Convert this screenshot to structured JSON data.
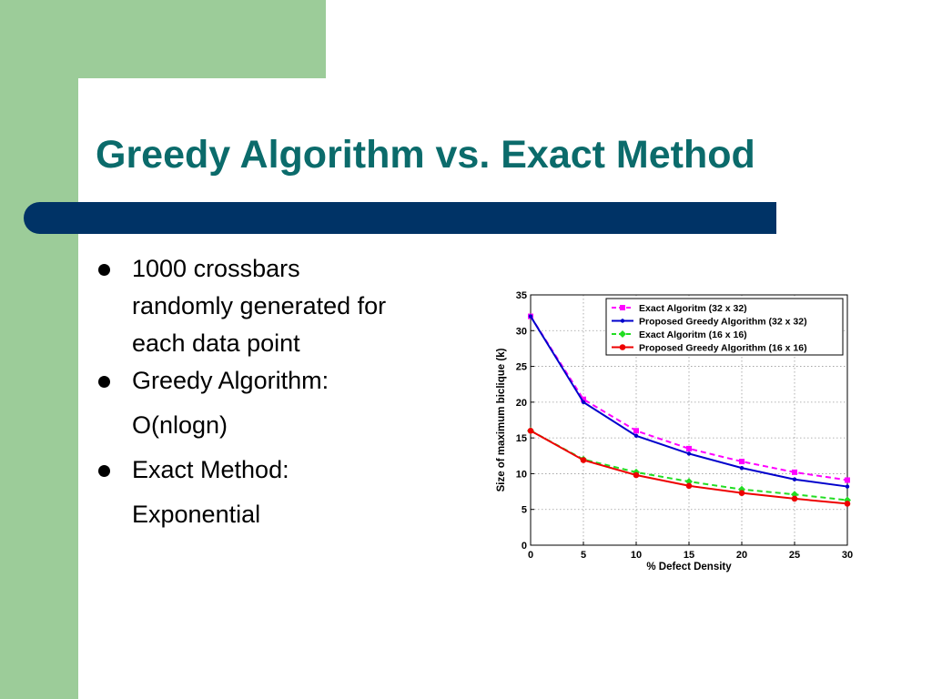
{
  "slide": {
    "title": "Greedy Algorithm vs. Exact Method",
    "bullets": [
      {
        "lines": [
          "1000 crossbars",
          "randomly generated for",
          "each data point"
        ]
      },
      {
        "lines": [
          "Greedy Algorithm:",
          "O(nlogn)"
        ]
      },
      {
        "lines": [
          "Exact Method:",
          "Exponential"
        ]
      }
    ]
  },
  "colors": {
    "green": "#9ccc99",
    "navy": "#003366",
    "title": "#0b6b6b"
  },
  "chart_data": {
    "type": "line",
    "xlabel": "% Defect Density",
    "ylabel": "Size of maximum biclique (k)",
    "xlim": [
      0,
      30
    ],
    "ylim": [
      0,
      35
    ],
    "xticks": [
      0,
      5,
      10,
      15,
      20,
      25,
      30
    ],
    "yticks": [
      0,
      5,
      10,
      15,
      20,
      25,
      30,
      35
    ],
    "grid": true,
    "legend": "top-right",
    "x": [
      0,
      5,
      10,
      15,
      20,
      25,
      30
    ],
    "series": [
      {
        "name": "Exact Algoritm (32 x 32)",
        "values": [
          32,
          20.4,
          16,
          13.5,
          11.7,
          10.2,
          9.1
        ],
        "color": "#ff00ff",
        "dash": true,
        "marker": "square"
      },
      {
        "name": "Proposed Greedy Algorithm (32 x 32)",
        "values": [
          32,
          20,
          15.3,
          12.8,
          10.8,
          9.2,
          8.2
        ],
        "color": "#0000cc",
        "dash": false,
        "marker": "dot"
      },
      {
        "name": "Exact Algoritm (16 x 16)",
        "values": [
          16,
          12,
          10.2,
          8.9,
          7.8,
          7.1,
          6.3
        ],
        "color": "#22dd22",
        "dash": true,
        "marker": "diamond"
      },
      {
        "name": "Proposed Greedy Algorithm (16 x 16)",
        "values": [
          16,
          11.9,
          9.8,
          8.3,
          7.3,
          6.5,
          5.8
        ],
        "color": "#ee0000",
        "dash": false,
        "marker": "circle"
      }
    ]
  }
}
